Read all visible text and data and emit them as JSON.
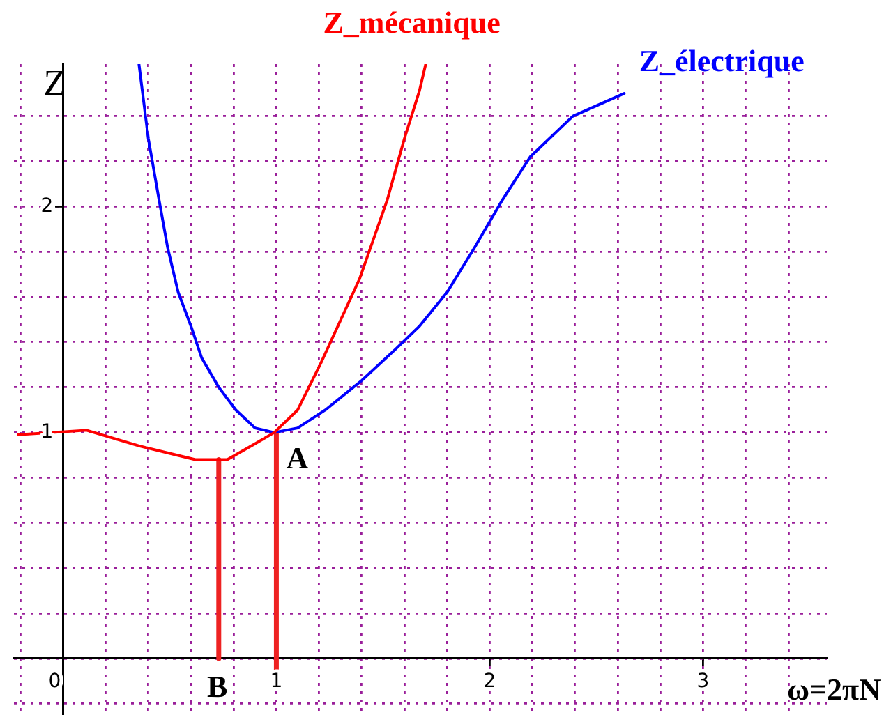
{
  "chart_data": {
    "type": "line",
    "xlabel": "ω=2πN",
    "ylabel": "Z",
    "xlim": [
      -0.23,
      3.58
    ],
    "ylim": [
      -0.25,
      2.63
    ],
    "xticks": [
      {
        "value": -0.2,
        "label": null
      },
      0,
      {
        "value": 0.2,
        "label": null
      },
      {
        "value": 0.4,
        "label": null
      },
      {
        "value": 0.6,
        "label": null
      },
      {
        "value": 0.8,
        "label": null
      },
      1,
      {
        "value": 1.2,
        "label": null
      },
      {
        "value": 1.4,
        "label": null
      },
      {
        "value": 1.6,
        "label": null
      },
      {
        "value": 1.8,
        "label": null
      },
      2,
      {
        "value": 2.2,
        "label": null
      },
      {
        "value": 2.4,
        "label": null
      },
      {
        "value": 2.6,
        "label": null
      },
      {
        "value": 2.8,
        "label": null
      },
      3,
      {
        "value": 3.2,
        "label": null
      },
      {
        "value": 3.4,
        "label": null
      }
    ],
    "yticks": [
      {
        "value": -0.2,
        "label": null
      },
      {
        "value": 0,
        "label": null
      },
      {
        "value": 0.2,
        "label": null
      },
      {
        "value": 0.4,
        "label": null
      },
      {
        "value": 0.6,
        "label": null
      },
      {
        "value": 0.8,
        "label": null
      },
      1,
      {
        "value": 1.2,
        "label": null
      },
      {
        "value": 1.4,
        "label": null
      },
      {
        "value": 1.6,
        "label": null
      },
      {
        "value": 1.8,
        "label": null
      },
      2,
      {
        "value": 2.2,
        "label": null
      },
      {
        "value": 2.4,
        "label": null
      }
    ],
    "grid": true,
    "legend": false,
    "marker": "none",
    "series": [
      {
        "name": "Z_mécanique",
        "color": "#ff0000",
        "x": [
          -0.21,
          0.11,
          0.36,
          0.62,
          0.77,
          0.9,
          0.99,
          1.1,
          1.21,
          1.39,
          1.52,
          1.6,
          1.67,
          1.7
        ],
        "values": [
          0.99,
          1.01,
          0.94,
          0.88,
          0.88,
          0.95,
          1.0,
          1.1,
          1.31,
          1.68,
          2.03,
          2.3,
          2.51,
          2.63
        ]
      },
      {
        "name": "Z_électrique",
        "color": "#0000ff",
        "x": [
          0.356,
          0.4,
          0.45,
          0.49,
          0.54,
          0.6,
          0.65,
          0.73,
          0.81,
          0.9,
          0.99,
          1.1,
          1.23,
          1.4,
          1.56,
          1.67,
          1.8,
          1.93,
          2.06,
          2.19,
          2.39,
          2.63
        ],
        "values": [
          2.63,
          2.3,
          2.03,
          1.82,
          1.62,
          1.47,
          1.33,
          1.2,
          1.1,
          1.02,
          1.0,
          1.02,
          1.1,
          1.23,
          1.37,
          1.47,
          1.62,
          1.82,
          2.03,
          2.22,
          2.4,
          2.5
        ]
      },
      {
        "color": "#ee2222",
        "x": [
          0.73,
          0.73
        ],
        "values": [
          0,
          0.88
        ]
      },
      {
        "color": "#ee2222",
        "x": [
          1,
          1
        ],
        "values": [
          -0.06,
          1
        ]
      }
    ],
    "annotations": [
      {
        "text": "A",
        "x": 1,
        "y": 1
      },
      {
        "text": "B",
        "x": 0.73,
        "y": 0
      }
    ]
  }
}
